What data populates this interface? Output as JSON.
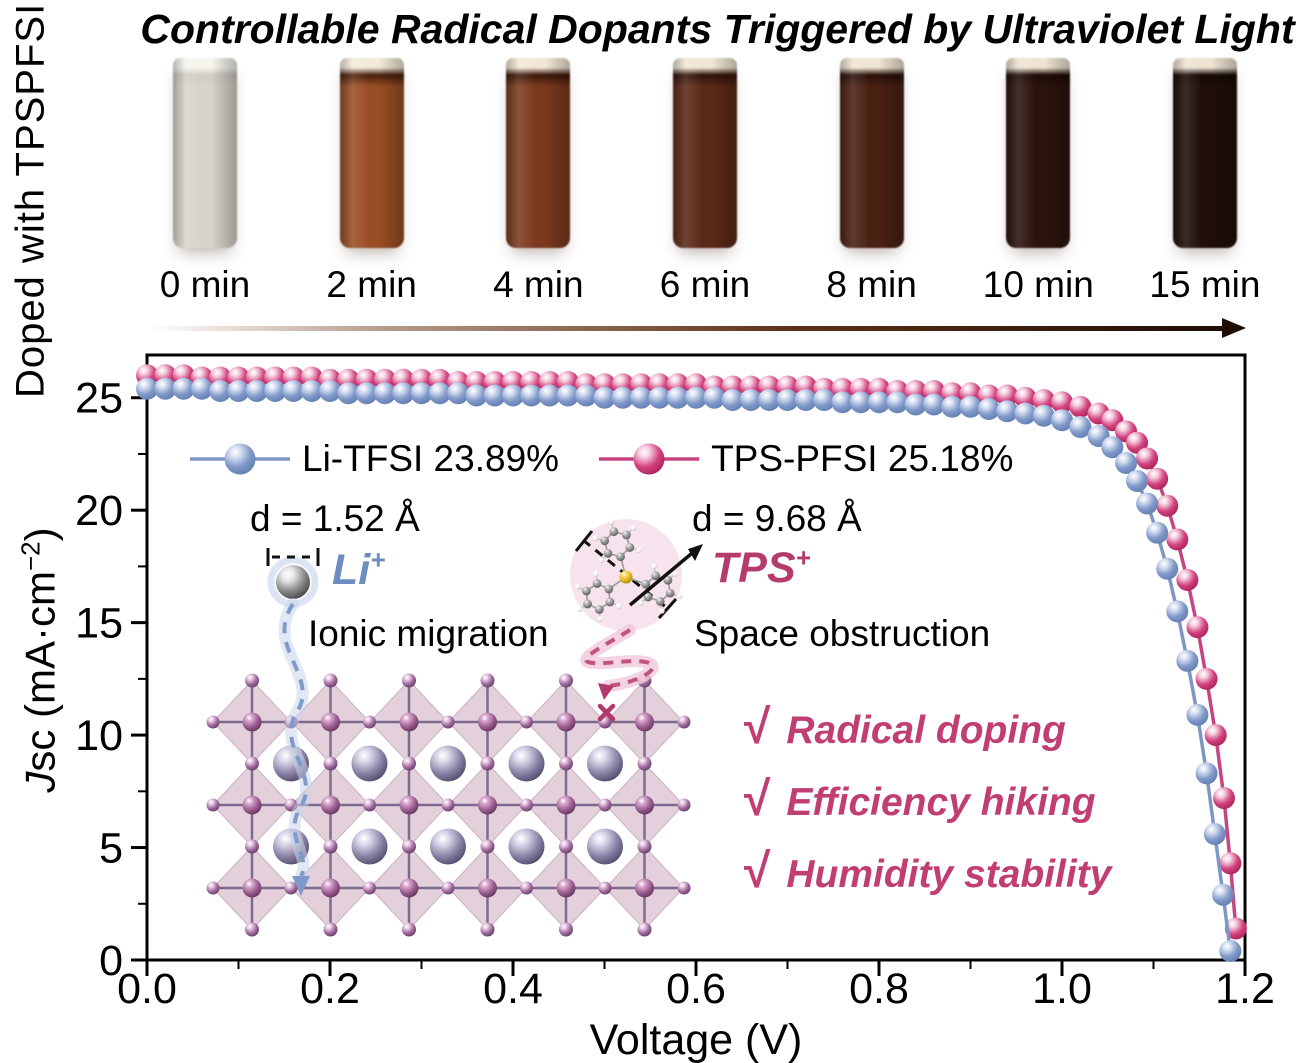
{
  "title": "Controllable Radical Dopants Triggered by Ultraviolet Light",
  "side_label": "Doped with TPSPFSI",
  "vials": [
    {
      "label": "0 min",
      "cap": "#f6f4ed",
      "rim": "#cfccc2",
      "body": "#d8d4ca"
    },
    {
      "label": "2 min",
      "cap": "#f3ead9",
      "rim": "#471f0d",
      "body": "#9a4e25"
    },
    {
      "label": "4 min",
      "cap": "#f3e8d6",
      "rim": "#3a160a",
      "body": "#7b3a1e"
    },
    {
      "label": "6 min",
      "cap": "#f1e6d4",
      "rim": "#30120a",
      "body": "#5b2a17"
    },
    {
      "label": "8 min",
      "cap": "#f0e5d3",
      "rim": "#280f08",
      "body": "#492113"
    },
    {
      "label": "10 min",
      "cap": "#efe4d2",
      "rim": "#1c0a06",
      "body": "#2c130c"
    },
    {
      "label": "15 min",
      "cap": "#eee3d1",
      "rim": "#160805",
      "body": "#1f0e08"
    }
  ],
  "timeline_arrow": {
    "from_color": "rgba(121,71,41,0)",
    "to_color": "#1f0d06"
  },
  "chart_data": {
    "type": "line",
    "xlabel": "Voltage (V)",
    "ylabel": "Jsc (mA·cm−2)",
    "ylabel_parts": {
      "italic": "J",
      "rest": "sc (mA·cm",
      "sup": "−2",
      "close": ")"
    },
    "xlim": [
      0.0,
      1.2
    ],
    "ylim": [
      0,
      26.9
    ],
    "grid": false,
    "legend_position": "inside-top-left",
    "xticks": [
      {
        "v": 0.0,
        "label": "0.0"
      },
      {
        "v": 0.2,
        "label": "0.2"
      },
      {
        "v": 0.4,
        "label": "0.4"
      },
      {
        "v": 0.6,
        "label": "0.6"
      },
      {
        "v": 0.8,
        "label": "0.8"
      },
      {
        "v": 1.0,
        "label": "1.0"
      },
      {
        "v": 1.2,
        "label": "1.2"
      }
    ],
    "xticks_minor": [
      0.1,
      0.3,
      0.5,
      0.7,
      0.9,
      1.1
    ],
    "yticks": [
      {
        "v": 0,
        "label": "0"
      },
      {
        "v": 5,
        "label": "5"
      },
      {
        "v": 10,
        "label": "10"
      },
      {
        "v": 15,
        "label": "15"
      },
      {
        "v": 20,
        "label": "20"
      },
      {
        "v": 25,
        "label": "25"
      }
    ],
    "yticks_minor": [
      2.5,
      7.5,
      12.5,
      17.5,
      22.5
    ],
    "series": [
      {
        "name": "TPS-PFSI  25.18%",
        "color": "#c64580",
        "marker_light": "#f6cfe0",
        "marker_base": "#d2437f",
        "marker_dark": "#a81e56",
        "points": [
          [
            0.0,
            26.0
          ],
          [
            0.02,
            26.0
          ],
          [
            0.04,
            26.0
          ],
          [
            0.06,
            25.9
          ],
          [
            0.08,
            25.9
          ],
          [
            0.1,
            25.9
          ],
          [
            0.12,
            25.9
          ],
          [
            0.14,
            25.9
          ],
          [
            0.16,
            25.9
          ],
          [
            0.18,
            25.9
          ],
          [
            0.2,
            25.8
          ],
          [
            0.22,
            25.8
          ],
          [
            0.24,
            25.8
          ],
          [
            0.26,
            25.8
          ],
          [
            0.28,
            25.8
          ],
          [
            0.3,
            25.8
          ],
          [
            0.32,
            25.8
          ],
          [
            0.34,
            25.7
          ],
          [
            0.36,
            25.7
          ],
          [
            0.38,
            25.7
          ],
          [
            0.4,
            25.7
          ],
          [
            0.42,
            25.7
          ],
          [
            0.44,
            25.7
          ],
          [
            0.46,
            25.7
          ],
          [
            0.48,
            25.6
          ],
          [
            0.5,
            25.6
          ],
          [
            0.52,
            25.6
          ],
          [
            0.54,
            25.6
          ],
          [
            0.56,
            25.6
          ],
          [
            0.58,
            25.6
          ],
          [
            0.6,
            25.6
          ],
          [
            0.62,
            25.5
          ],
          [
            0.64,
            25.5
          ],
          [
            0.66,
            25.5
          ],
          [
            0.68,
            25.5
          ],
          [
            0.7,
            25.5
          ],
          [
            0.72,
            25.5
          ],
          [
            0.74,
            25.4
          ],
          [
            0.76,
            25.4
          ],
          [
            0.78,
            25.4
          ],
          [
            0.8,
            25.4
          ],
          [
            0.82,
            25.3
          ],
          [
            0.84,
            25.3
          ],
          [
            0.86,
            25.3
          ],
          [
            0.88,
            25.2
          ],
          [
            0.9,
            25.2
          ],
          [
            0.92,
            25.1
          ],
          [
            0.94,
            25.1
          ],
          [
            0.96,
            25.0
          ],
          [
            0.98,
            24.9
          ],
          [
            1.0,
            24.8
          ],
          [
            1.02,
            24.6
          ],
          [
            1.04,
            24.3
          ],
          [
            1.055,
            24.0
          ],
          [
            1.07,
            23.5
          ],
          [
            1.082,
            23.0
          ],
          [
            1.093,
            22.3
          ],
          [
            1.104,
            21.4
          ],
          [
            1.115,
            20.2
          ],
          [
            1.126,
            18.7
          ],
          [
            1.137,
            16.9
          ],
          [
            1.148,
            14.8
          ],
          [
            1.158,
            12.5
          ],
          [
            1.168,
            10.0
          ],
          [
            1.177,
            7.2
          ],
          [
            1.184,
            4.3
          ],
          [
            1.19,
            1.4
          ]
        ]
      },
      {
        "name": "Li-TFSI 23.89%",
        "color": "#7e96c4",
        "marker_light": "#d7e0f2",
        "marker_base": "#8199c9",
        "marker_dark": "#5f7bb0",
        "points": [
          [
            0.0,
            25.4
          ],
          [
            0.02,
            25.4
          ],
          [
            0.04,
            25.4
          ],
          [
            0.06,
            25.4
          ],
          [
            0.08,
            25.3
          ],
          [
            0.1,
            25.3
          ],
          [
            0.12,
            25.3
          ],
          [
            0.14,
            25.3
          ],
          [
            0.16,
            25.3
          ],
          [
            0.18,
            25.3
          ],
          [
            0.2,
            25.3
          ],
          [
            0.22,
            25.2
          ],
          [
            0.24,
            25.2
          ],
          [
            0.26,
            25.2
          ],
          [
            0.28,
            25.2
          ],
          [
            0.3,
            25.2
          ],
          [
            0.32,
            25.2
          ],
          [
            0.34,
            25.2
          ],
          [
            0.36,
            25.1
          ],
          [
            0.38,
            25.1
          ],
          [
            0.4,
            25.1
          ],
          [
            0.42,
            25.1
          ],
          [
            0.44,
            25.1
          ],
          [
            0.46,
            25.1
          ],
          [
            0.48,
            25.1
          ],
          [
            0.5,
            25.0
          ],
          [
            0.52,
            25.0
          ],
          [
            0.54,
            25.0
          ],
          [
            0.56,
            25.0
          ],
          [
            0.58,
            25.0
          ],
          [
            0.6,
            25.0
          ],
          [
            0.62,
            25.0
          ],
          [
            0.64,
            24.9
          ],
          [
            0.66,
            24.9
          ],
          [
            0.68,
            24.9
          ],
          [
            0.7,
            24.9
          ],
          [
            0.72,
            24.9
          ],
          [
            0.74,
            24.9
          ],
          [
            0.76,
            24.8
          ],
          [
            0.78,
            24.8
          ],
          [
            0.8,
            24.8
          ],
          [
            0.82,
            24.8
          ],
          [
            0.84,
            24.7
          ],
          [
            0.86,
            24.7
          ],
          [
            0.88,
            24.6
          ],
          [
            0.9,
            24.6
          ],
          [
            0.92,
            24.5
          ],
          [
            0.94,
            24.4
          ],
          [
            0.96,
            24.3
          ],
          [
            0.98,
            24.2
          ],
          [
            1.0,
            24.0
          ],
          [
            1.02,
            23.7
          ],
          [
            1.04,
            23.3
          ],
          [
            1.055,
            22.8
          ],
          [
            1.07,
            22.1
          ],
          [
            1.082,
            21.3
          ],
          [
            1.093,
            20.3
          ],
          [
            1.104,
            19.0
          ],
          [
            1.115,
            17.4
          ],
          [
            1.126,
            15.5
          ],
          [
            1.137,
            13.3
          ],
          [
            1.148,
            10.9
          ],
          [
            1.158,
            8.3
          ],
          [
            1.167,
            5.6
          ],
          [
            1.176,
            2.9
          ],
          [
            1.184,
            0.4
          ]
        ]
      }
    ],
    "legend_order": [
      "Li-TFSI 23.89%",
      "TPS-PFSI  25.18%"
    ]
  },
  "annotations": {
    "li": {
      "distance": "d = 1.52 Å",
      "ion": "Li+",
      "ion_base": "Li",
      "ion_charge": "+",
      "mechanism": "Ionic migration"
    },
    "tps": {
      "distance": "d = 9.68 Å",
      "ion": "TPS+",
      "ion_base": "TPS",
      "ion_charge": "+",
      "mechanism": "Space obstruction",
      "block_mark": "×"
    }
  },
  "highlights": [
    {
      "mark": "√",
      "text": "Radical doping"
    },
    {
      "mark": "√",
      "text": "Efficiency hiking"
    },
    {
      "mark": "√",
      "text": "Humidity stability"
    }
  ],
  "colors": {
    "accent_pink": "#c13e72",
    "accent_blue": "#6d8cc0",
    "lattice_diamond": "#e2cdd9",
    "lattice_frame": "#7d6b8f",
    "axis": "#000000"
  }
}
